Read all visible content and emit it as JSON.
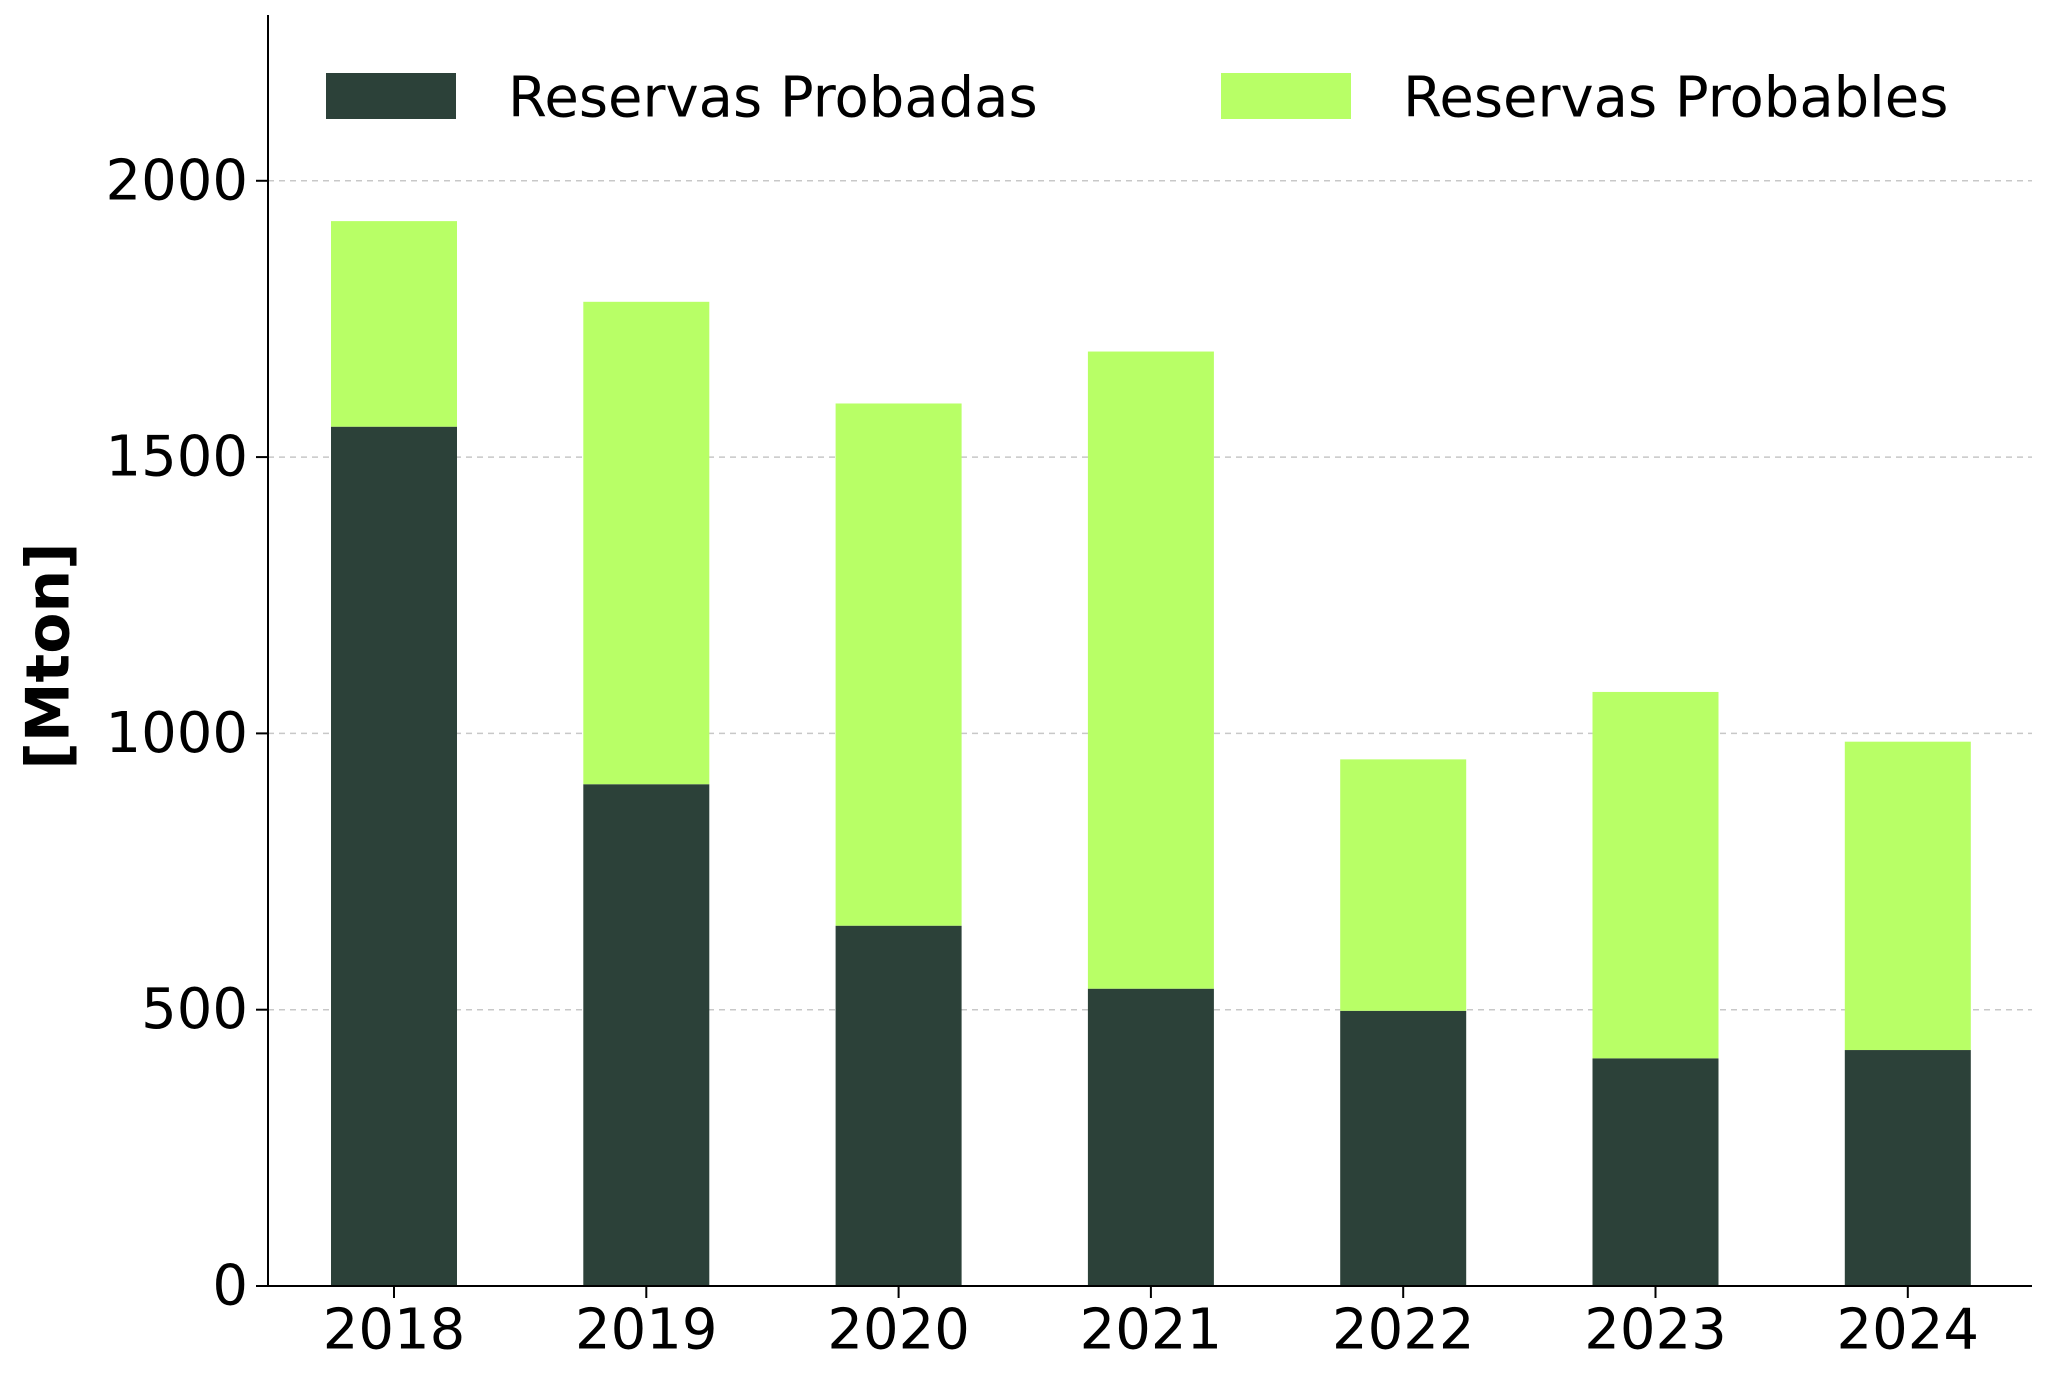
{
  "chart_data": {
    "type": "bar",
    "stacked": true,
    "categories": [
      "2018",
      "2019",
      "2020",
      "2021",
      "2022",
      "2023",
      "2024"
    ],
    "series": [
      {
        "name": "Reservas Probadas",
        "color": "#2c4139",
        "values": [
          1555,
          908,
          652,
          538,
          498,
          412,
          427
        ]
      },
      {
        "name": "Reservas Probables",
        "color": "#b8ff66",
        "values": [
          372,
          873,
          945,
          1153,
          455,
          663,
          558
        ]
      }
    ],
    "title": "",
    "xlabel": "",
    "ylabel": "[Mton]",
    "ylim": [
      0,
      2300
    ],
    "yticks": [
      "0",
      "500",
      "1000",
      "1500",
      "2000"
    ],
    "grid": "y-dashed",
    "legend": "top"
  }
}
